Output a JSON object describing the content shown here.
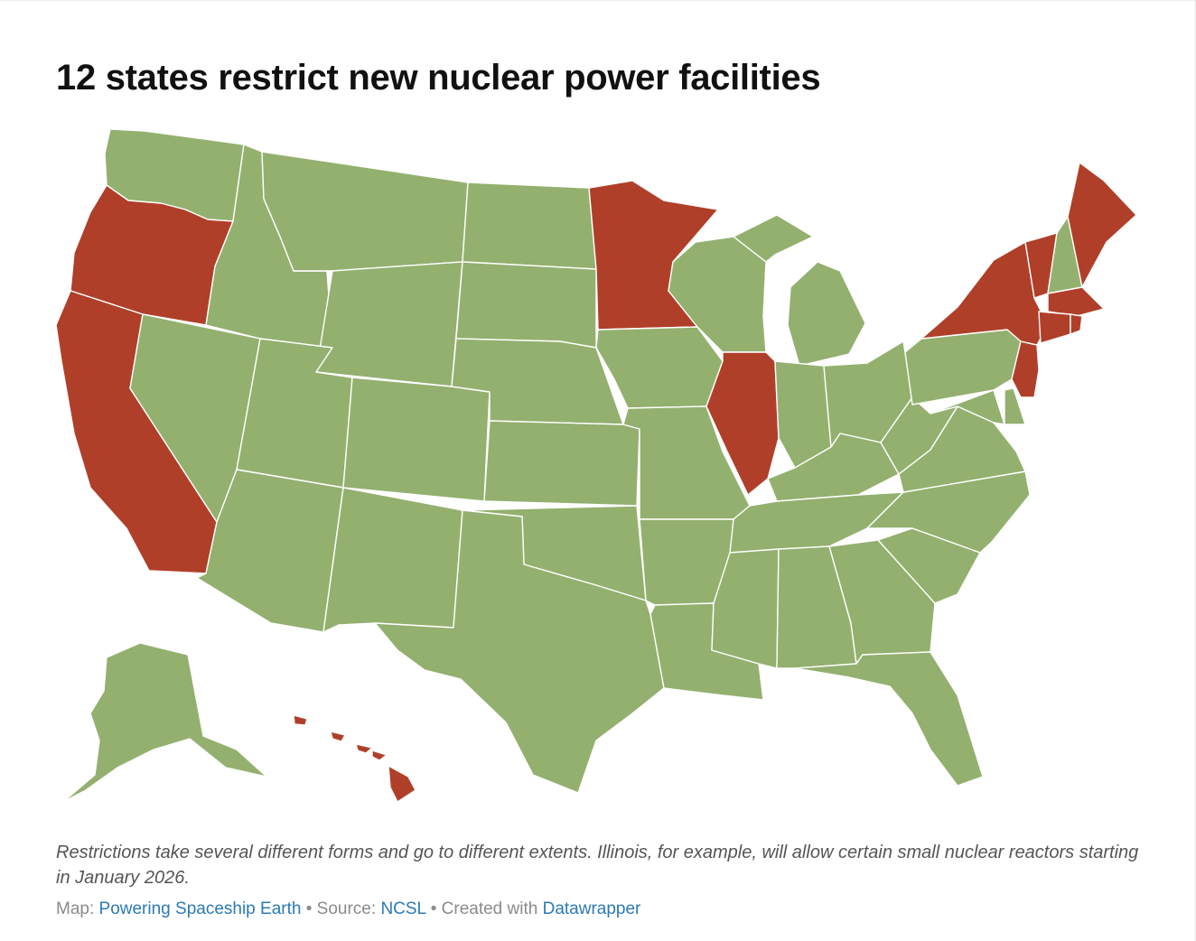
{
  "title": "12 states restrict new nuclear power facilities",
  "notes": "Restrictions take several different forms and go to different extents. Illinois, for example, will allow certain small nuclear reactors starting in January 2026.",
  "footer": {
    "map_label": "Map:",
    "map_author": "Powering Spaceship Earth",
    "separator": "•",
    "source_label": "Source:",
    "source_name": "NCSL",
    "created_label": "Created with",
    "created_tool": "Datawrapper"
  },
  "colors": {
    "restricted": "#b03f29",
    "not_restricted": "#93b06f",
    "link": "#2a7ab8"
  },
  "map_data": {
    "restricted_states": [
      "OR",
      "CA",
      "MN",
      "IL",
      "NY",
      "VT",
      "ME",
      "MA",
      "CT",
      "RI",
      "NJ",
      "HI"
    ],
    "other_states": [
      "WA",
      "ID",
      "MT",
      "WY",
      "NV",
      "UT",
      "AZ",
      "CO",
      "NM",
      "ND",
      "SD",
      "NE",
      "KS",
      "OK",
      "TX",
      "IA",
      "MO",
      "AR",
      "LA",
      "WI",
      "MI",
      "IN",
      "OH",
      "KY",
      "TN",
      "MS",
      "AL",
      "GA",
      "FL",
      "SC",
      "NC",
      "VA",
      "WV",
      "PA",
      "MD",
      "DE",
      "NH",
      "AK"
    ]
  }
}
